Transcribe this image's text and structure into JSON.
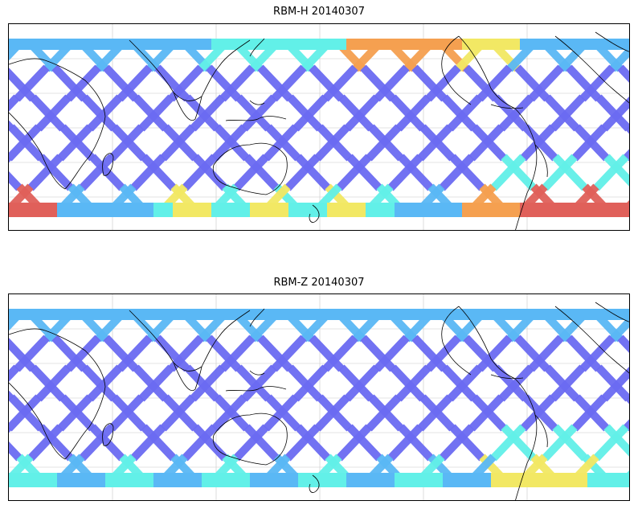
{
  "panels": [
    {
      "title": "RBM-H 20140307"
    },
    {
      "title": "RBM-Z 20140307"
    }
  ],
  "colors": {
    "swath_low": "#6b6bf2",
    "swath_mid": "#5ab8f5",
    "swath_cyan": "#62f0e8",
    "swath_yellow": "#f2e864",
    "swath_orange": "#f5a050",
    "swath_high": "#e0605a",
    "coastline": "#000000",
    "grid": "#c8c8c8"
  }
}
